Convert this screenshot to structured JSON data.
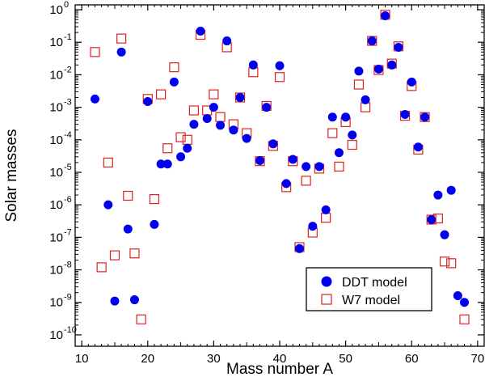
{
  "chart_data": {
    "type": "scatter",
    "title": "",
    "xlabel": "Mass number A",
    "ylabel": "Solar masses",
    "xlim": [
      9,
      71
    ],
    "ylim_log10": [
      -10.35,
      0.15
    ],
    "yscale": "log",
    "grid": false,
    "x_ticks": [
      10,
      20,
      30,
      40,
      50,
      60,
      70
    ],
    "y_ticks": [
      {
        "exp": 0,
        "label_base": "10",
        "label_exp": "0"
      },
      {
        "exp": -1,
        "label_base": "10",
        "label_exp": "-1"
      },
      {
        "exp": -2,
        "label_base": "10",
        "label_exp": "-2"
      },
      {
        "exp": -3,
        "label_base": "10",
        "label_exp": "-3"
      },
      {
        "exp": -4,
        "label_base": "10",
        "label_exp": "-4"
      },
      {
        "exp": -5,
        "label_base": "10",
        "label_exp": "-5"
      },
      {
        "exp": -6,
        "label_base": "10",
        "label_exp": "-6"
      },
      {
        "exp": -7,
        "label_base": "10",
        "label_exp": "-7"
      },
      {
        "exp": -8,
        "label_base": "10",
        "label_exp": "-8"
      },
      {
        "exp": -9,
        "label_base": "10",
        "label_exp": "-9"
      },
      {
        "exp": -10,
        "label_base": "10",
        "label_exp": "-10"
      }
    ],
    "legend": {
      "position": "bottom-right"
    },
    "series": [
      {
        "name": "DDT model",
        "marker": "filled-circle",
        "color": "#0000ee",
        "points": [
          {
            "x": 12,
            "y": 0.0018
          },
          {
            "x": 14,
            "y": 1e-06
          },
          {
            "x": 15,
            "y": 1.1e-09
          },
          {
            "x": 16,
            "y": 0.05
          },
          {
            "x": 17,
            "y": 1.8e-07
          },
          {
            "x": 18,
            "y": 1.2e-09
          },
          {
            "x": 20,
            "y": 0.0015
          },
          {
            "x": 21,
            "y": 2.5e-07
          },
          {
            "x": 22,
            "y": 1.8e-05
          },
          {
            "x": 23,
            "y": 1.8e-05
          },
          {
            "x": 24,
            "y": 0.006
          },
          {
            "x": 25,
            "y": 3e-05
          },
          {
            "x": 26,
            "y": 5.5e-05
          },
          {
            "x": 27,
            "y": 0.0003
          },
          {
            "x": 28,
            "y": 0.22
          },
          {
            "x": 29,
            "y": 0.00045
          },
          {
            "x": 30,
            "y": 0.001
          },
          {
            "x": 31,
            "y": 0.00028
          },
          {
            "x": 32,
            "y": 0.11
          },
          {
            "x": 33,
            "y": 0.0002
          },
          {
            "x": 34,
            "y": 0.002
          },
          {
            "x": 35,
            "y": 0.00011
          },
          {
            "x": 36,
            "y": 0.02
          },
          {
            "x": 37,
            "y": 2.3e-05
          },
          {
            "x": 38,
            "y": 0.001
          },
          {
            "x": 39,
            "y": 7.5e-05
          },
          {
            "x": 40,
            "y": 0.019
          },
          {
            "x": 41,
            "y": 4.5e-06
          },
          {
            "x": 42,
            "y": 2.5e-05
          },
          {
            "x": 43,
            "y": 4.5e-08
          },
          {
            "x": 44,
            "y": 1.5e-05
          },
          {
            "x": 45,
            "y": 2.2e-07
          },
          {
            "x": 46,
            "y": 1.5e-05
          },
          {
            "x": 47,
            "y": 7e-07
          },
          {
            "x": 48,
            "y": 0.0005
          },
          {
            "x": 49,
            "y": 4e-05
          },
          {
            "x": 50,
            "y": 0.0005
          },
          {
            "x": 51,
            "y": 0.00014
          },
          {
            "x": 52,
            "y": 0.013
          },
          {
            "x": 53,
            "y": 0.0017
          },
          {
            "x": 54,
            "y": 0.11
          },
          {
            "x": 55,
            "y": 0.015
          },
          {
            "x": 56,
            "y": 0.65
          },
          {
            "x": 57,
            "y": 0.02
          },
          {
            "x": 58,
            "y": 0.07
          },
          {
            "x": 59,
            "y": 0.0006
          },
          {
            "x": 60,
            "y": 0.006
          },
          {
            "x": 61,
            "y": 6e-05
          },
          {
            "x": 62,
            "y": 0.0005
          },
          {
            "x": 63,
            "y": 3.5e-07
          },
          {
            "x": 64,
            "y": 2e-06
          },
          {
            "x": 65,
            "y": 1.2e-07
          },
          {
            "x": 66,
            "y": 2.8e-06
          },
          {
            "x": 67,
            "y": 1.6e-09
          },
          {
            "x": 68,
            "y": 1e-09
          }
        ]
      },
      {
        "name": "W7 model",
        "marker": "open-square",
        "color": "#e02020",
        "points": [
          {
            "x": 12,
            "y": 0.05
          },
          {
            "x": 13,
            "y": 1.2e-08
          },
          {
            "x": 14,
            "y": 2e-05
          },
          {
            "x": 15,
            "y": 2.8e-08
          },
          {
            "x": 16,
            "y": 0.13
          },
          {
            "x": 17,
            "y": 1.9e-06
          },
          {
            "x": 18,
            "y": 3.2e-08
          },
          {
            "x": 19,
            "y": 3e-10
          },
          {
            "x": 20,
            "y": 0.0018
          },
          {
            "x": 21,
            "y": 1.5e-06
          },
          {
            "x": 22,
            "y": 0.0025
          },
          {
            "x": 23,
            "y": 5.5e-05
          },
          {
            "x": 24,
            "y": 0.017
          },
          {
            "x": 25,
            "y": 0.00012
          },
          {
            "x": 26,
            "y": 0.0001
          },
          {
            "x": 27,
            "y": 0.0008
          },
          {
            "x": 28,
            "y": 0.17
          },
          {
            "x": 29,
            "y": 0.0008
          },
          {
            "x": 30,
            "y": 0.0025
          },
          {
            "x": 31,
            "y": 0.0005
          },
          {
            "x": 32,
            "y": 0.07
          },
          {
            "x": 33,
            "y": 0.0003
          },
          {
            "x": 34,
            "y": 0.002
          },
          {
            "x": 35,
            "y": 0.00016
          },
          {
            "x": 36,
            "y": 0.012
          },
          {
            "x": 37,
            "y": 2.2e-05
          },
          {
            "x": 38,
            "y": 0.0011
          },
          {
            "x": 39,
            "y": 6.5e-05
          },
          {
            "x": 40,
            "y": 0.0085
          },
          {
            "x": 41,
            "y": 3.5e-06
          },
          {
            "x": 42,
            "y": 2.2e-05
          },
          {
            "x": 43,
            "y": 5e-08
          },
          {
            "x": 44,
            "y": 5.5e-06
          },
          {
            "x": 45,
            "y": 1.4e-07
          },
          {
            "x": 46,
            "y": 1.3e-05
          },
          {
            "x": 47,
            "y": 4e-07
          },
          {
            "x": 48,
            "y": 0.00016
          },
          {
            "x": 49,
            "y": 1.5e-05
          },
          {
            "x": 50,
            "y": 0.00035
          },
          {
            "x": 51,
            "y": 7e-05
          },
          {
            "x": 52,
            "y": 0.005
          },
          {
            "x": 53,
            "y": 0.001
          },
          {
            "x": 54,
            "y": 0.11
          },
          {
            "x": 55,
            "y": 0.014
          },
          {
            "x": 56,
            "y": 0.7
          },
          {
            "x": 57,
            "y": 0.022
          },
          {
            "x": 58,
            "y": 0.075
          },
          {
            "x": 59,
            "y": 0.00055
          },
          {
            "x": 60,
            "y": 0.0045
          },
          {
            "x": 61,
            "y": 5e-05
          },
          {
            "x": 62,
            "y": 0.0005
          },
          {
            "x": 63,
            "y": 3.5e-07
          },
          {
            "x": 64,
            "y": 3.8e-07
          },
          {
            "x": 65,
            "y": 1.8e-08
          },
          {
            "x": 66,
            "y": 1.6e-08
          },
          {
            "x": 68,
            "y": 3e-10
          }
        ]
      }
    ]
  }
}
